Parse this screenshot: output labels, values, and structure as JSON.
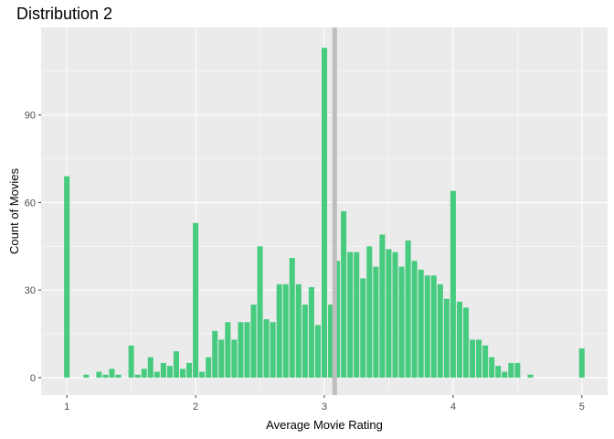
{
  "chart_data": {
    "type": "bar",
    "title": "Distribution 2",
    "xlabel": "Average Movie Rating",
    "ylabel": "Count of Movies",
    "xlim": [
      0.8,
      5.2
    ],
    "ylim": [
      -6,
      120
    ],
    "xticks": [
      1,
      2,
      3,
      4,
      5
    ],
    "yticks": [
      0,
      30,
      60,
      90
    ],
    "bin_width": 0.05,
    "grid": true,
    "legend": "none",
    "bar_color": "#47cb7f",
    "panel_color": "#ebebeb",
    "reference_line": {
      "x": 3.08,
      "color": "#bebebe"
    },
    "bins": [
      {
        "x": 1.0,
        "y": 69
      },
      {
        "x": 1.05,
        "y": 0
      },
      {
        "x": 1.1,
        "y": 0
      },
      {
        "x": 1.15,
        "y": 1
      },
      {
        "x": 1.2,
        "y": 0
      },
      {
        "x": 1.25,
        "y": 2
      },
      {
        "x": 1.3,
        "y": 1
      },
      {
        "x": 1.35,
        "y": 3
      },
      {
        "x": 1.4,
        "y": 1
      },
      {
        "x": 1.45,
        "y": 0
      },
      {
        "x": 1.5,
        "y": 11
      },
      {
        "x": 1.55,
        "y": 1
      },
      {
        "x": 1.6,
        "y": 3
      },
      {
        "x": 1.65,
        "y": 7
      },
      {
        "x": 1.7,
        "y": 2
      },
      {
        "x": 1.75,
        "y": 5
      },
      {
        "x": 1.8,
        "y": 4
      },
      {
        "x": 1.85,
        "y": 9
      },
      {
        "x": 1.9,
        "y": 3
      },
      {
        "x": 1.95,
        "y": 5
      },
      {
        "x": 2.0,
        "y": 53
      },
      {
        "x": 2.05,
        "y": 2
      },
      {
        "x": 2.1,
        "y": 7
      },
      {
        "x": 2.15,
        "y": 16
      },
      {
        "x": 2.2,
        "y": 13
      },
      {
        "x": 2.25,
        "y": 19
      },
      {
        "x": 2.3,
        "y": 13
      },
      {
        "x": 2.35,
        "y": 19
      },
      {
        "x": 2.4,
        "y": 19
      },
      {
        "x": 2.45,
        "y": 25
      },
      {
        "x": 2.5,
        "y": 45
      },
      {
        "x": 2.55,
        "y": 20
      },
      {
        "x": 2.6,
        "y": 19
      },
      {
        "x": 2.65,
        "y": 32
      },
      {
        "x": 2.7,
        "y": 32
      },
      {
        "x": 2.75,
        "y": 41
      },
      {
        "x": 2.8,
        "y": 32
      },
      {
        "x": 2.85,
        "y": 25
      },
      {
        "x": 2.9,
        "y": 31
      },
      {
        "x": 2.95,
        "y": 18
      },
      {
        "x": 3.0,
        "y": 113
      },
      {
        "x": 3.05,
        "y": 25
      },
      {
        "x": 3.1,
        "y": 40
      },
      {
        "x": 3.15,
        "y": 57
      },
      {
        "x": 3.2,
        "y": 43
      },
      {
        "x": 3.25,
        "y": 43
      },
      {
        "x": 3.3,
        "y": 34
      },
      {
        "x": 3.35,
        "y": 45
      },
      {
        "x": 3.4,
        "y": 38
      },
      {
        "x": 3.45,
        "y": 49
      },
      {
        "x": 3.5,
        "y": 44
      },
      {
        "x": 3.55,
        "y": 43
      },
      {
        "x": 3.6,
        "y": 38
      },
      {
        "x": 3.65,
        "y": 47
      },
      {
        "x": 3.7,
        "y": 40
      },
      {
        "x": 3.75,
        "y": 37
      },
      {
        "x": 3.8,
        "y": 35
      },
      {
        "x": 3.85,
        "y": 35
      },
      {
        "x": 3.9,
        "y": 32
      },
      {
        "x": 3.95,
        "y": 27
      },
      {
        "x": 4.0,
        "y": 64
      },
      {
        "x": 4.05,
        "y": 26
      },
      {
        "x": 4.1,
        "y": 24
      },
      {
        "x": 4.15,
        "y": 13
      },
      {
        "x": 4.2,
        "y": 13
      },
      {
        "x": 4.25,
        "y": 11
      },
      {
        "x": 4.3,
        "y": 7
      },
      {
        "x": 4.35,
        "y": 4
      },
      {
        "x": 4.4,
        "y": 2
      },
      {
        "x": 4.45,
        "y": 5
      },
      {
        "x": 4.5,
        "y": 5
      },
      {
        "x": 4.55,
        "y": 0
      },
      {
        "x": 4.6,
        "y": 1
      },
      {
        "x": 4.65,
        "y": 0
      },
      {
        "x": 4.7,
        "y": 0
      },
      {
        "x": 4.75,
        "y": 0
      },
      {
        "x": 4.8,
        "y": 0
      },
      {
        "x": 4.85,
        "y": 0
      },
      {
        "x": 4.9,
        "y": 0
      },
      {
        "x": 4.95,
        "y": 0
      },
      {
        "x": 5.0,
        "y": 10
      }
    ]
  }
}
